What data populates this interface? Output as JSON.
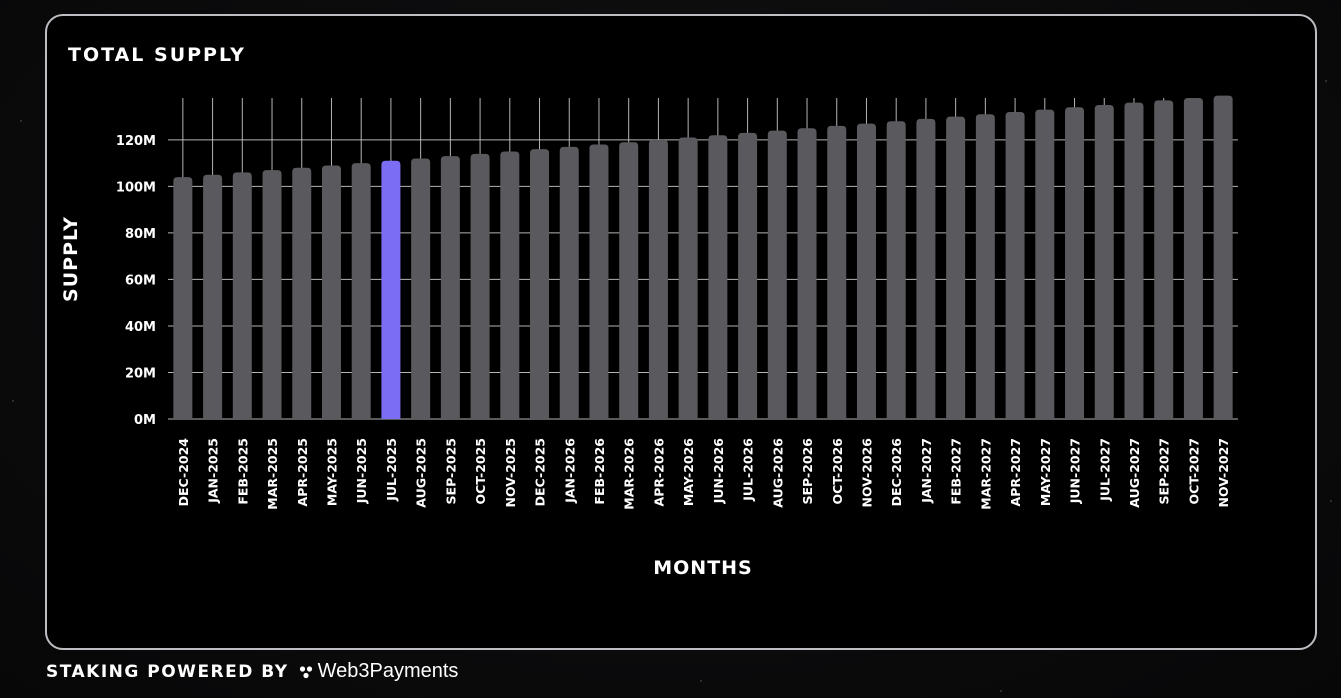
{
  "chart_data": {
    "type": "bar",
    "title": "TOTAL SUPPLY",
    "xlabel": "MONTHS",
    "ylabel": "SUPPLY",
    "ylim": [
      0,
      138
    ],
    "yticks": [
      {
        "value": 0,
        "label": "0M"
      },
      {
        "value": 20,
        "label": "20M"
      },
      {
        "value": 40,
        "label": "40M"
      },
      {
        "value": 60,
        "label": "60M"
      },
      {
        "value": 80,
        "label": "80M"
      },
      {
        "value": 100,
        "label": "100M"
      },
      {
        "value": 120,
        "label": "120M"
      }
    ],
    "grid": true,
    "highlight_index": 7,
    "colors": {
      "bar": "#5a5a5e",
      "highlight": "#7c6df5",
      "grid": "#c8c8c8",
      "text": "#ffffff"
    },
    "categories": [
      "DEC-2024",
      "JAN-2025",
      "FEB-2025",
      "MAR-2025",
      "APR-2025",
      "MAY-2025",
      "JUN-2025",
      "JUL-2025",
      "AUG-2025",
      "SEP-2025",
      "OCT-2025",
      "NOV-2025",
      "DEC-2025",
      "JAN-2026",
      "FEB-2026",
      "MAR-2026",
      "APR-2026",
      "MAY-2026",
      "JUN-2026",
      "JUL-2026",
      "AUG-2026",
      "SEP-2026",
      "OCT-2026",
      "NOV-2026",
      "DEC-2026",
      "JAN-2027",
      "FEB-2027",
      "MAR-2027",
      "APR-2027",
      "MAY-2027",
      "JUN-2027",
      "JUL-2027",
      "AUG-2027",
      "SEP-2027",
      "OCT-2027",
      "NOV-2027"
    ],
    "values": [
      104,
      105,
      106,
      107,
      108,
      109,
      110,
      111,
      112,
      113,
      114,
      115,
      116,
      117,
      118,
      119,
      120,
      121,
      122,
      123,
      124,
      125,
      126,
      127,
      128,
      129,
      130,
      131,
      132,
      133,
      134,
      135,
      136,
      137,
      138,
      139
    ]
  },
  "footer": {
    "label": "STAKING POWERED BY",
    "brand": "Web3Payments",
    "brand_icon": "web3payments-logo-icon"
  }
}
